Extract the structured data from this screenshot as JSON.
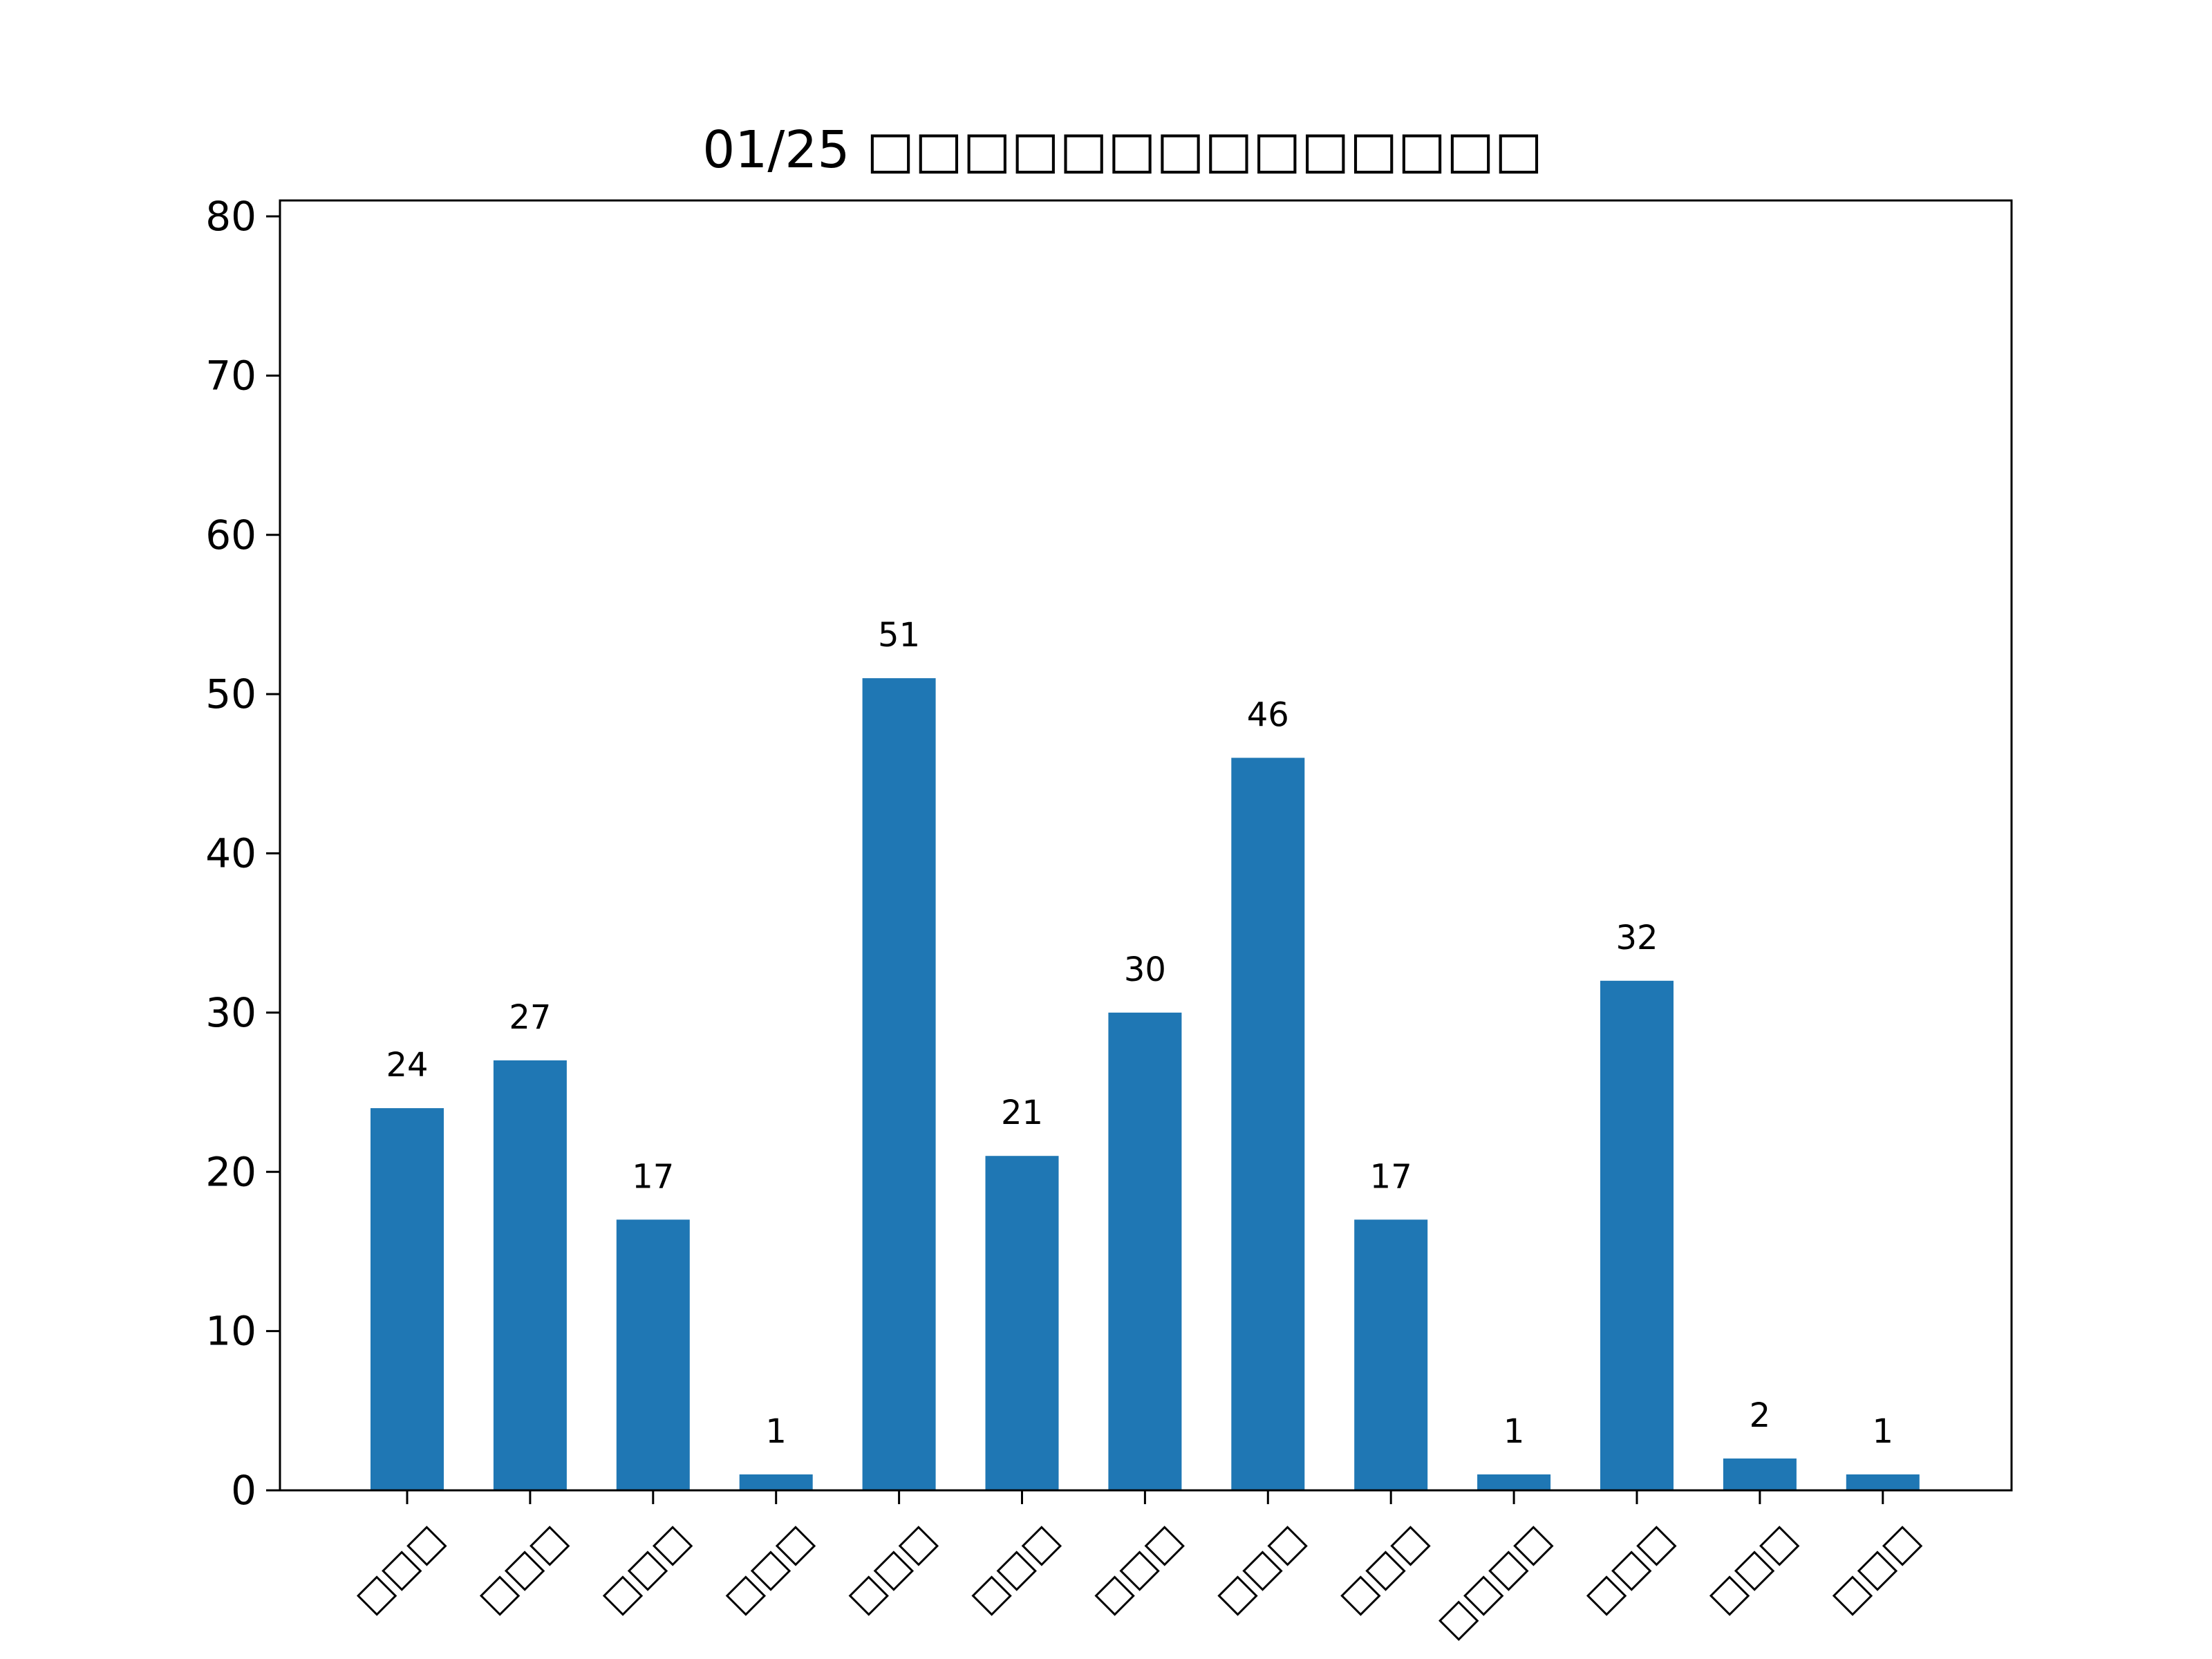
{
  "chart_data": {
    "type": "bar",
    "title": "01/25 □□□□□□□□□□□□□□",
    "xlabel": "",
    "ylabel": "",
    "categories": [
      "□□□",
      "□□□",
      "□□□",
      "□□□",
      "□□□",
      "□□□",
      "□□□",
      "□□□",
      "□□□",
      "□□□□",
      "□□□",
      "□□□",
      "□□□"
    ],
    "values": [
      24,
      27,
      17,
      1,
      51,
      21,
      30,
      46,
      17,
      1,
      32,
      2,
      1
    ],
    "data_labels": [
      "24",
      "27",
      "17",
      "1",
      "51",
      "21",
      "30",
      "46",
      "17",
      "1",
      "32",
      "2",
      "1"
    ],
    "ylim": [
      0,
      81
    ],
    "yticks": [
      0,
      10,
      20,
      30,
      40,
      50,
      60,
      70,
      80
    ],
    "grid": false,
    "bar_color": "#1f77b4"
  }
}
